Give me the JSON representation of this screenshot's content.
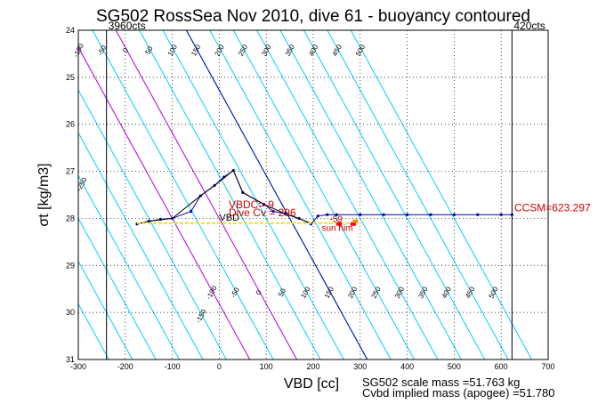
{
  "chart_data": {
    "type": "line",
    "title": "SG502 RossSea Nov 2010, dive 61 - buoyancy contoured",
    "xlabel": "VBD [cc]",
    "ylabel": "σt [kg/m3]",
    "xlim": [
      -300,
      700
    ],
    "ylim": [
      24,
      31
    ],
    "y_reversed": true,
    "xticks": [
      -300,
      -200,
      -100,
      0,
      100,
      200,
      300,
      400,
      500,
      600,
      700
    ],
    "yticks": [
      24,
      25,
      26,
      27,
      28,
      29,
      30,
      31
    ],
    "grid": true,
    "vertical_lines": [
      {
        "x": -240,
        "label": "3960cts"
      },
      {
        "x": 623,
        "label": "420cts"
      }
    ],
    "buoyancy_contours": {
      "slope_cc_per_sigma": 55,
      "cyan_levels": [
        -400,
        -350,
        -300,
        -250,
        -200,
        -150,
        -100,
        -50,
        0,
        50,
        100,
        150,
        200,
        250,
        300,
        350,
        400,
        450,
        500
      ],
      "magenta_levels": [
        -100,
        0
      ],
      "blue_level": 150
    },
    "upper_contour_labels": [
      "-400",
      "-350",
      "-300",
      "-250",
      "-150",
      "-100",
      "-50",
      "0",
      "50",
      "100",
      "150",
      "200",
      "250",
      "300",
      "350",
      "400",
      "450",
      "500"
    ],
    "lower_contour_labels": [
      "-150",
      "-100",
      "-50",
      "0",
      "50",
      "100",
      "150",
      "200",
      "250",
      "300",
      "350",
      "400",
      "450",
      "500"
    ],
    "series": [
      {
        "name": "dive profile",
        "color": "#0000aa",
        "points": [
          [
            -175,
            28.12
          ],
          [
            -150,
            28.06
          ],
          [
            -125,
            28.02
          ],
          [
            -100,
            28.0
          ],
          [
            -60,
            27.85
          ],
          [
            -40,
            27.52
          ],
          [
            -10,
            27.3
          ],
          [
            10,
            27.12
          ],
          [
            30,
            26.98
          ],
          [
            50,
            27.45
          ],
          [
            95,
            27.7
          ],
          [
            115,
            27.85
          ],
          [
            140,
            27.9
          ],
          [
            170,
            28.0
          ],
          [
            195,
            28.12
          ],
          [
            210,
            27.95
          ],
          [
            230,
            27.92
          ],
          [
            250,
            27.92
          ],
          [
            300,
            27.92
          ],
          [
            350,
            27.92
          ],
          [
            400,
            27.92
          ],
          [
            450,
            27.92
          ],
          [
            500,
            27.92
          ],
          [
            550,
            27.92
          ],
          [
            600,
            27.92
          ],
          [
            623,
            27.92
          ]
        ]
      },
      {
        "name": "climb",
        "color": "#000000",
        "points": [
          [
            -175,
            28.12
          ],
          [
            -150,
            28.06
          ],
          [
            -100,
            28.0
          ],
          [
            -40,
            27.52
          ],
          [
            -10,
            27.3
          ],
          [
            30,
            26.98
          ],
          [
            50,
            27.45
          ],
          [
            95,
            27.7
          ],
          [
            140,
            27.9
          ],
          [
            195,
            28.1
          ]
        ]
      },
      {
        "name": "neutral",
        "color": "#f0e020",
        "points": [
          [
            -175,
            28.1
          ],
          [
            290,
            28.1
          ]
        ]
      }
    ],
    "markers": [
      {
        "x": 255,
        "y": 28.12,
        "color": "#ff0000"
      },
      {
        "x": 285,
        "y": 28.12,
        "color": "#ff0000"
      },
      {
        "x": 290,
        "y": 28.06,
        "color": "#ff8800"
      }
    ],
    "annotations": [
      {
        "text": "VBD",
        "x": 0,
        "y": 28.05,
        "color": "#000000"
      },
      {
        "text": "VBDC=-9",
        "x": 20,
        "y": 27.78,
        "color": "#cc0000"
      },
      {
        "text": "Dive Cv = 296",
        "x": 20,
        "y": 27.95,
        "color": "#cc0000"
      },
      {
        "text": "-59",
        "x": 235,
        "y": 28.08,
        "color": "#cc0000"
      },
      {
        "text": "sun him",
        "x": 218,
        "y": 28.27,
        "color": "#cc0000"
      },
      {
        "text": "CCSM=623.297",
        "x": 628,
        "y": 27.85,
        "color": "#cc0000"
      }
    ]
  },
  "footer": {
    "mass_line": "SG502 scale mass =51.763 kg",
    "implied_line": "Cvbd implied mass (apogee) =51.780"
  }
}
